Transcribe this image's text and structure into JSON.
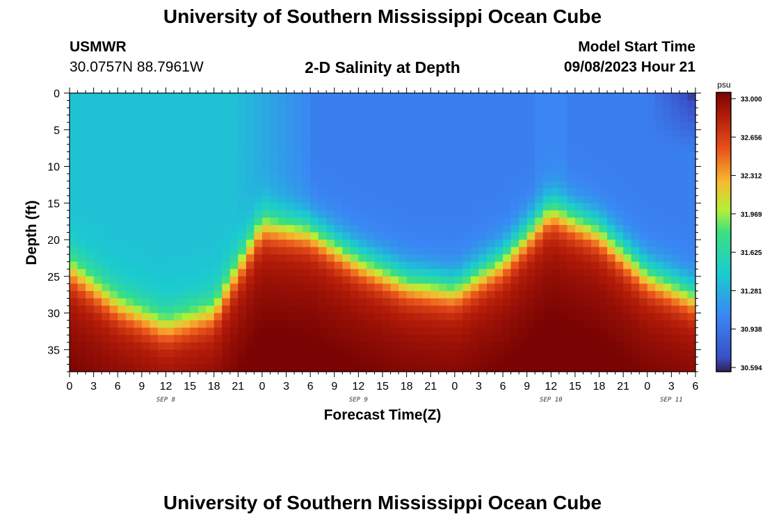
{
  "header": {
    "title": "University of Southern Mississippi Ocean Cube",
    "station_id": "USMWR",
    "coords": "30.0757N  88.7961W",
    "subtitle": "2-D Salinity at Depth",
    "model_label": "Model Start Time",
    "model_date": "09/08/2023 Hour 21"
  },
  "footer": {
    "title": "University of Southern Mississippi Ocean Cube"
  },
  "chart_data": {
    "type": "heatmap",
    "title": "2-D Salinity at Depth",
    "xlabel": "Forecast Time(Z)",
    "ylabel": "Depth (ft)",
    "xlim": [
      0,
      78
    ],
    "ylim": [
      0,
      38
    ],
    "x_tick_labels": [
      "0",
      "3",
      "6",
      "9",
      "12",
      "15",
      "18",
      "21",
      "0",
      "3",
      "6",
      "9",
      "12",
      "15",
      "18",
      "21",
      "0",
      "3",
      "6",
      "9",
      "12",
      "15",
      "18",
      "21",
      "0",
      "3",
      "6"
    ],
    "y_ticks": [
      0,
      5,
      10,
      15,
      20,
      25,
      30,
      35
    ],
    "date_labels": [
      {
        "label": "SEP 8",
        "hours": 12
      },
      {
        "label": "SEP 9",
        "hours": 36
      },
      {
        "label": "SEP 10",
        "hours": 60
      },
      {
        "label": "SEP 11",
        "hours": 75
      }
    ],
    "colorbar": {
      "unit": "psu",
      "min": 30.594,
      "max": 33.0,
      "tick_labels": [
        "33.000",
        "32.656",
        "32.312",
        "31.969",
        "31.625",
        "31.281",
        "30.938",
        "30.594"
      ]
    },
    "halocline_depth_ft": [
      {
        "hours": 0,
        "depth": 24
      },
      {
        "hours": 6,
        "depth": 29
      },
      {
        "hours": 12,
        "depth": 32
      },
      {
        "hours": 18,
        "depth": 30
      },
      {
        "hours": 24,
        "depth": 18
      },
      {
        "hours": 30,
        "depth": 19
      },
      {
        "hours": 36,
        "depth": 23
      },
      {
        "hours": 42,
        "depth": 26
      },
      {
        "hours": 48,
        "depth": 27
      },
      {
        "hours": 54,
        "depth": 23
      },
      {
        "hours": 60,
        "depth": 16
      },
      {
        "hours": 66,
        "depth": 19
      },
      {
        "hours": 72,
        "depth": 25
      },
      {
        "hours": 78,
        "depth": 28
      }
    ]
  }
}
